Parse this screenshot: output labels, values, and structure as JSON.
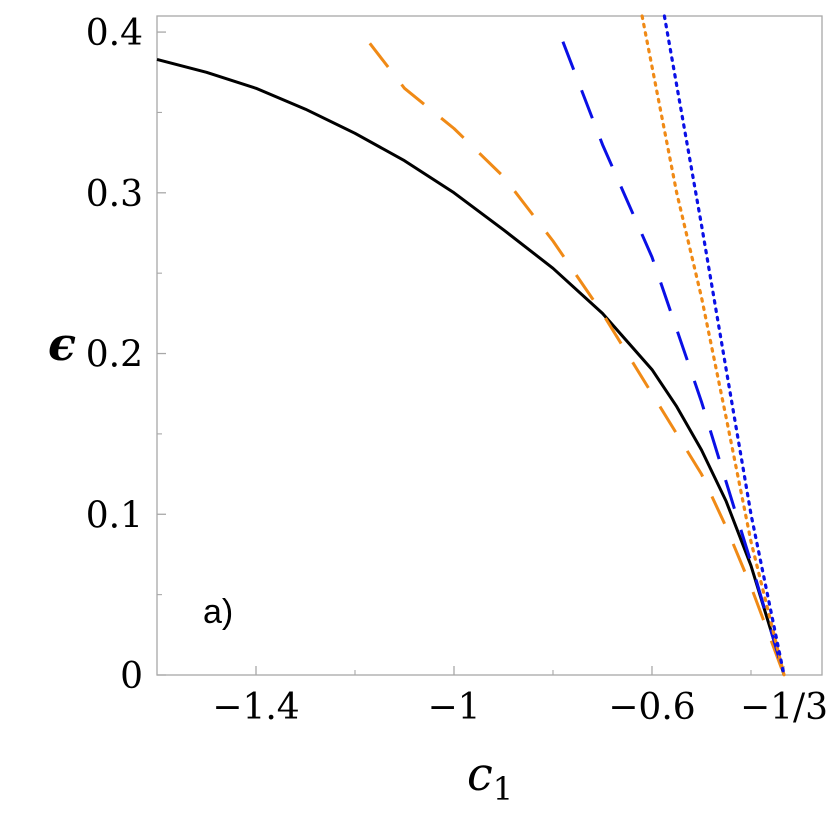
{
  "chart_data": {
    "type": "line",
    "title": "",
    "xlabel": "c",
    "xlabel_sub": "1",
    "ylabel": "ϵ",
    "annotation": "a)",
    "xlim": [
      -1.6,
      -0.3333
    ],
    "ylim": [
      0,
      0.41
    ],
    "x_ticks": [
      {
        "value": -1.4,
        "label": "−1.4"
      },
      {
        "value": -1.0,
        "label": "−1"
      },
      {
        "value": -0.6,
        "label": "−0.6"
      },
      {
        "value": -0.3333,
        "label": "−1/3"
      }
    ],
    "x_minor_ticks": [
      -1.2,
      -0.8,
      -0.4
    ],
    "y_ticks": [
      {
        "value": 0,
        "label": "0"
      },
      {
        "value": 0.1,
        "label": "0.1"
      },
      {
        "value": 0.2,
        "label": "0.2"
      },
      {
        "value": 0.3,
        "label": "0.3"
      },
      {
        "value": 0.4,
        "label": "0.4"
      }
    ],
    "grid": false,
    "series": [
      {
        "color": "#000000",
        "style": "solid",
        "points": [
          [
            -1.6,
            0.383
          ],
          [
            -1.5,
            0.375
          ],
          [
            -1.4,
            0.365
          ],
          [
            -1.3,
            0.352
          ],
          [
            -1.2,
            0.337
          ],
          [
            -1.1,
            0.32
          ],
          [
            -1.0,
            0.3
          ],
          [
            -0.9,
            0.277
          ],
          [
            -0.8,
            0.253
          ],
          [
            -0.7,
            0.225
          ],
          [
            -0.6,
            0.19
          ],
          [
            -0.55,
            0.167
          ],
          [
            -0.5,
            0.14
          ],
          [
            -0.45,
            0.108
          ],
          [
            -0.4,
            0.068
          ],
          [
            -0.35,
            0.018
          ],
          [
            -0.3333,
            0.0
          ]
        ]
      },
      {
        "color": "#f08a16",
        "style": "longdash",
        "points": [
          [
            -1.17,
            0.393
          ],
          [
            -1.1,
            0.365
          ],
          [
            -1.0,
            0.34
          ],
          [
            -0.9,
            0.31
          ],
          [
            -0.8,
            0.27
          ],
          [
            -0.7,
            0.225
          ],
          [
            -0.6,
            0.175
          ],
          [
            -0.5,
            0.125
          ],
          [
            -0.45,
            0.092
          ],
          [
            -0.4,
            0.055
          ],
          [
            -0.3333,
            0.0
          ]
        ]
      },
      {
        "color": "#0a10e6",
        "style": "longdash",
        "points": [
          [
            -0.78,
            0.394
          ],
          [
            -0.7,
            0.33
          ],
          [
            -0.6,
            0.26
          ],
          [
            -0.5,
            0.17
          ],
          [
            -0.45,
            0.12
          ],
          [
            -0.4,
            0.07
          ],
          [
            -0.3333,
            0.0
          ]
        ]
      },
      {
        "color": "#f08a16",
        "style": "dotted",
        "points": [
          [
            -0.62,
            0.41
          ],
          [
            -0.55,
            0.3
          ],
          [
            -0.5,
            0.235
          ],
          [
            -0.45,
            0.16
          ],
          [
            -0.4,
            0.083
          ],
          [
            -0.3333,
            0.0
          ]
        ]
      },
      {
        "color": "#0a10e6",
        "style": "dotted",
        "points": [
          [
            -0.575,
            0.41
          ],
          [
            -0.5,
            0.28
          ],
          [
            -0.45,
            0.19
          ],
          [
            -0.4,
            0.1
          ],
          [
            -0.3333,
            0.0
          ]
        ]
      }
    ]
  }
}
